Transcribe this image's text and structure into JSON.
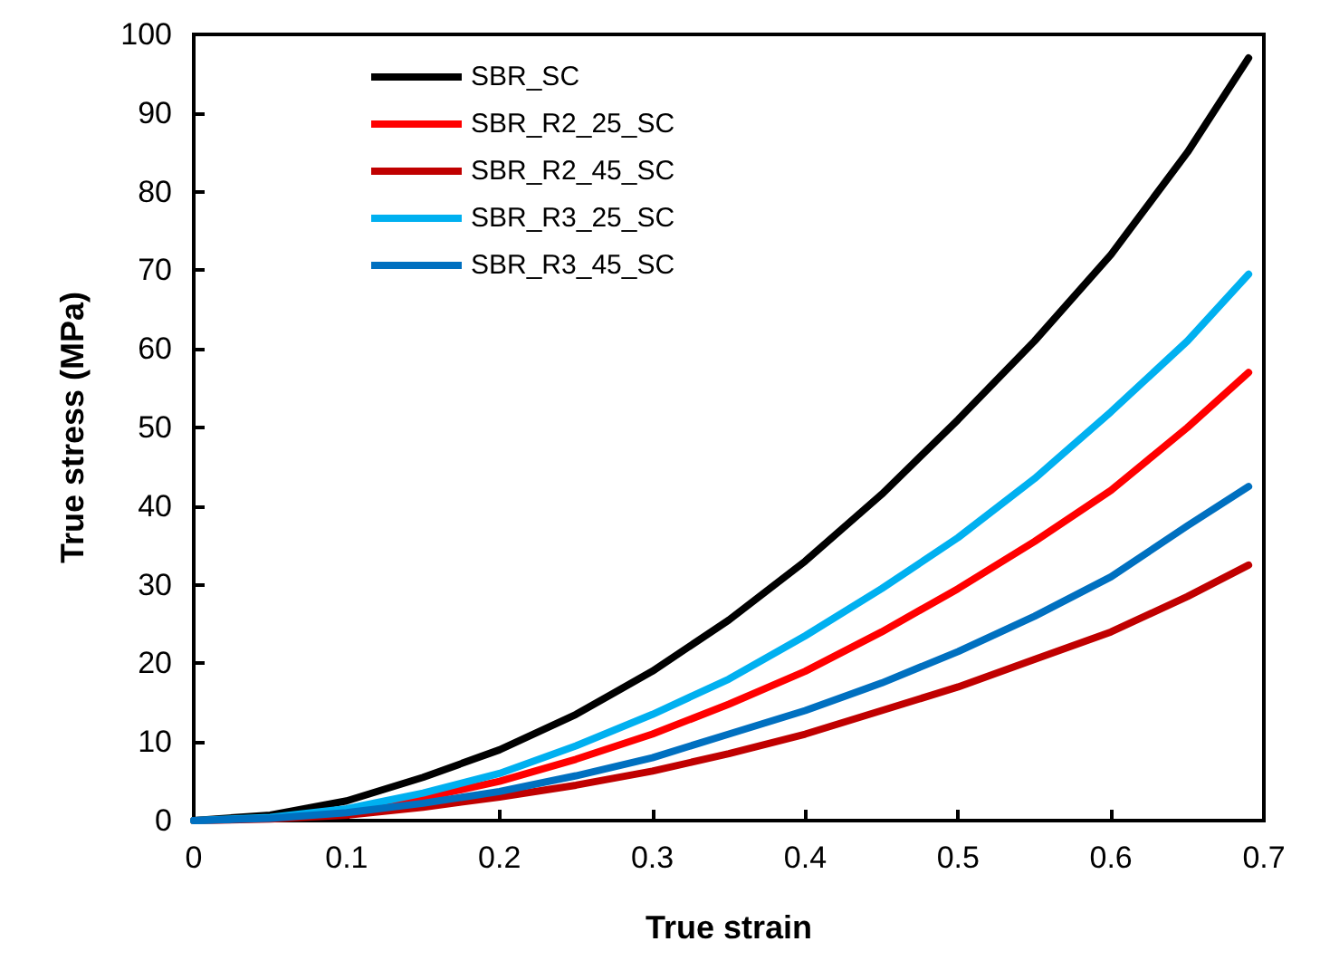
{
  "chart_data": {
    "type": "line",
    "xlabel": "True strain",
    "ylabel": "True stress (MPa)",
    "x": [
      0,
      0.05,
      0.1,
      0.15,
      0.2,
      0.25,
      0.3,
      0.35,
      0.4,
      0.45,
      0.5,
      0.55,
      0.6,
      0.65,
      0.69
    ],
    "series": [
      {
        "name": "SBR_SC",
        "color": "#000000",
        "values": [
          0,
          0.7,
          2.5,
          5.5,
          9,
          13.5,
          19,
          25.5,
          33,
          41.5,
          51,
          61,
          72,
          85,
          97
        ]
      },
      {
        "name": "SBR_R2_25_SC",
        "color": "#ff0000",
        "values": [
          null,
          null,
          1.2,
          2.9,
          5,
          7.8,
          11,
          14.8,
          19,
          24,
          29.5,
          35.5,
          42,
          50,
          57
        ]
      },
      {
        "name": "SBR_R2_45_SC",
        "color": "#c00000",
        "values": [
          0,
          0.2,
          0.7,
          1.7,
          3,
          4.5,
          6.3,
          8.5,
          11,
          14,
          17,
          20.5,
          24,
          28.5,
          32.5
        ]
      },
      {
        "name": "SBR_R3_25_SC",
        "color": "#00b0f0",
        "values": [
          0,
          0.4,
          1.5,
          3.5,
          6,
          9.5,
          13.5,
          18,
          23.5,
          29.5,
          36,
          43.5,
          52,
          61,
          69.5
        ]
      },
      {
        "name": "SBR_R3_45_SC",
        "color": "#0070c0",
        "values": [
          0,
          0.3,
          1,
          2.2,
          3.7,
          5.7,
          8,
          11,
          14,
          17.5,
          21.5,
          26,
          31,
          37.5,
          42.5
        ]
      }
    ],
    "xlim": [
      0,
      0.7
    ],
    "xticks": [
      0,
      0.1,
      0.2,
      0.3,
      0.4,
      0.5,
      0.6,
      0.7
    ],
    "ylim": [
      0,
      100
    ],
    "yticks": [
      0,
      10,
      20,
      30,
      40,
      50,
      60,
      70,
      80,
      90,
      100
    ],
    "grid": false,
    "legend": "top left",
    "marker": "none",
    "line_style": "solid"
  }
}
